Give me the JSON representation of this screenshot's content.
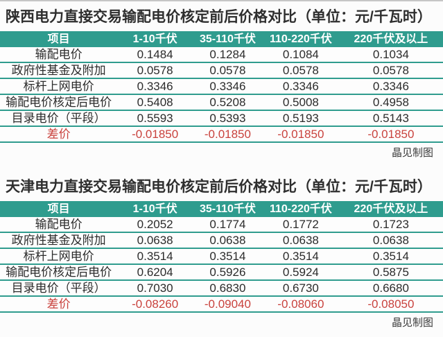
{
  "colors": {
    "teal_header": "#2f9c8e",
    "diff_red": "#c9423d",
    "text": "#2b2b2b",
    "header_text": "#ffffff"
  },
  "tables": [
    {
      "title": "陕西电力直接交易输配电价核定前后价格对比（单位：元/千瓦时）",
      "columns": [
        "项目",
        "1-10千伏",
        "35-110千伏",
        "110-220千伏",
        "220千伏及以上"
      ],
      "rows": [
        {
          "label": "输配电价",
          "values": [
            "0.1484",
            "0.1284",
            "0.1084",
            "0.1034"
          ],
          "highlight": false
        },
        {
          "label": "政府性基金及附加",
          "values": [
            "0.0578",
            "0.0578",
            "0.0578",
            "0.0578"
          ],
          "highlight": false
        },
        {
          "label": "标杆上网电价",
          "values": [
            "0.3346",
            "0.3346",
            "0.3346",
            "0.3346"
          ],
          "highlight": false
        },
        {
          "label": "输配电价核定后电价",
          "values": [
            "0.5408",
            "0.5208",
            "0.5008",
            "0.4958"
          ],
          "highlight": false
        },
        {
          "label": "目录电价（平段）",
          "values": [
            "0.5593",
            "0.5393",
            "0.5193",
            "0.5143"
          ],
          "highlight": false
        },
        {
          "label": "差价",
          "values": [
            "-0.01850",
            "-0.01850",
            "-0.01850",
            "-0.01850"
          ],
          "highlight": true
        }
      ],
      "credit": "晶见制图"
    },
    {
      "title": "天津电力直接交易输配电价核定前后价格对比（单位：元/千瓦时）",
      "columns": [
        "项目",
        "1-10千伏",
        "35-110千伏",
        "110-220千伏",
        "220千伏及以上"
      ],
      "rows": [
        {
          "label": "输配电价",
          "values": [
            "0.2052",
            "0.1774",
            "0.1772",
            "0.1723"
          ],
          "highlight": false
        },
        {
          "label": "政府性基金及附加",
          "values": [
            "0.0638",
            "0.0638",
            "0.0638",
            "0.0638"
          ],
          "highlight": false
        },
        {
          "label": "标杆上网电价",
          "values": [
            "0.3514",
            "0.3514",
            "0.3514",
            "0.3514"
          ],
          "highlight": false
        },
        {
          "label": "输配电价核定后电价",
          "values": [
            "0.6204",
            "0.5926",
            "0.5924",
            "0.5875"
          ],
          "highlight": false
        },
        {
          "label": "目录电价（平段）",
          "values": [
            "0.7030",
            "0.6830",
            "0.6730",
            "0.6680"
          ],
          "highlight": false
        },
        {
          "label": "差价",
          "values": [
            "-0.08260",
            "-0.09040",
            "-0.08060",
            "-0.08050"
          ],
          "highlight": true
        }
      ],
      "credit": "晶见制图"
    }
  ],
  "chart_data": [
    {
      "type": "table",
      "title": "陕西电力直接交易输配电价核定前后价格对比（单位：元/千瓦时）",
      "columns": [
        "项目",
        "1-10千伏",
        "35-110千伏",
        "110-220千伏",
        "220千伏及以上"
      ],
      "rows": [
        [
          "输配电价",
          "0.1484",
          "0.1284",
          "0.1084",
          "0.1034"
        ],
        [
          "政府性基金及附加",
          "0.0578",
          "0.0578",
          "0.0578",
          "0.0578"
        ],
        [
          "标杆上网电价",
          "0.3346",
          "0.3346",
          "0.3346",
          "0.3346"
        ],
        [
          "输配电价核定后电价",
          "0.5408",
          "0.5208",
          "0.5008",
          "0.4958"
        ],
        [
          "目录电价（平段）",
          "0.5593",
          "0.5393",
          "0.5193",
          "0.5143"
        ],
        [
          "差价",
          "-0.01850",
          "-0.01850",
          "-0.01850",
          "-0.01850"
        ]
      ],
      "annotations": [
        "晶见制图"
      ]
    },
    {
      "type": "table",
      "title": "天津电力直接交易输配电价核定前后价格对比（单位：元/千瓦时）",
      "columns": [
        "项目",
        "1-10千伏",
        "35-110千伏",
        "110-220千伏",
        "220千伏及以上"
      ],
      "rows": [
        [
          "输配电价",
          "0.2052",
          "0.1774",
          "0.1772",
          "0.1723"
        ],
        [
          "政府性基金及附加",
          "0.0638",
          "0.0638",
          "0.0638",
          "0.0638"
        ],
        [
          "标杆上网电价",
          "0.3514",
          "0.3514",
          "0.3514",
          "0.3514"
        ],
        [
          "输配电价核定后电价",
          "0.6204",
          "0.5926",
          "0.5924",
          "0.5875"
        ],
        [
          "目录电价（平段）",
          "0.7030",
          "0.6830",
          "0.6730",
          "0.6680"
        ],
        [
          "差价",
          "-0.08260",
          "-0.09040",
          "-0.08060",
          "-0.08050"
        ]
      ],
      "annotations": [
        "晶见制图"
      ]
    }
  ]
}
